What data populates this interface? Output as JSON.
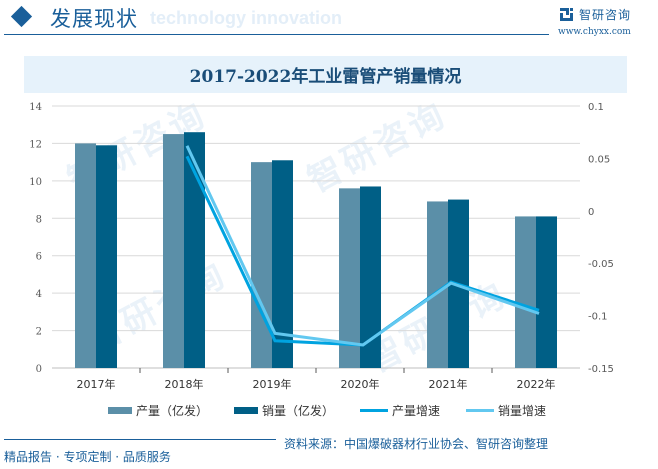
{
  "header": {
    "section_title": "发展现状",
    "ghost_text": "technology innovation",
    "brand_name": "智研咨询",
    "brand_url": "www.chyxx.com"
  },
  "chart_title": "2017-2022年工业雷管产销量情况",
  "legend": [
    {
      "label": "产量（亿发）",
      "type": "bar",
      "color": "#5b8fa8"
    },
    {
      "label": "销量（亿发）",
      "type": "bar",
      "color": "#005f86"
    },
    {
      "label": "产量增速",
      "type": "line",
      "color": "#00a3e0"
    },
    {
      "label": "销量增速",
      "type": "line",
      "color": "#62c8f0"
    }
  ],
  "footer": {
    "tagline": "精品报告 · 专项定制 · 品质服务",
    "source": "资料来源：中国爆破器材行业协会、智研咨询整理"
  },
  "watermark": "智研咨询",
  "chart_data": {
    "type": "bar",
    "title": "2017-2022年工业雷管产销量情况",
    "categories": [
      "2017年",
      "2018年",
      "2019年",
      "2020年",
      "2021年",
      "2022年"
    ],
    "series": [
      {
        "name": "产量（亿发）",
        "type": "bar",
        "axis": "left",
        "color": "#5b8fa8",
        "values": [
          12.0,
          12.5,
          11.0,
          9.6,
          8.9,
          8.1
        ]
      },
      {
        "name": "销量（亿发）",
        "type": "bar",
        "axis": "left",
        "color": "#005f86",
        "values": [
          11.9,
          12.6,
          11.1,
          9.7,
          9.0,
          8.1
        ]
      },
      {
        "name": "产量增速",
        "type": "line",
        "axis": "right",
        "color": "#00a3e0",
        "values": [
          null,
          0.052,
          -0.124,
          -0.128,
          -0.068,
          -0.095
        ]
      },
      {
        "name": "销量增速",
        "type": "line",
        "axis": "right",
        "color": "#62c8f0",
        "values": [
          null,
          0.062,
          -0.117,
          -0.128,
          -0.069,
          -0.098
        ]
      }
    ],
    "left_axis": {
      "min": 0,
      "max": 14,
      "ticks": [
        0,
        2,
        4,
        6,
        8,
        10,
        12,
        14
      ]
    },
    "right_axis": {
      "min": -0.15,
      "max": 0.1,
      "ticks": [
        -0.15,
        -0.1,
        -0.05,
        0,
        0.05,
        0.1
      ],
      "tick_labels": [
        "-0.15",
        "-0.1",
        "-0.05",
        "0",
        "0.05",
        "0.1"
      ]
    },
    "xlabel": "",
    "ylabel": "",
    "grid": true,
    "legend_position": "bottom"
  }
}
